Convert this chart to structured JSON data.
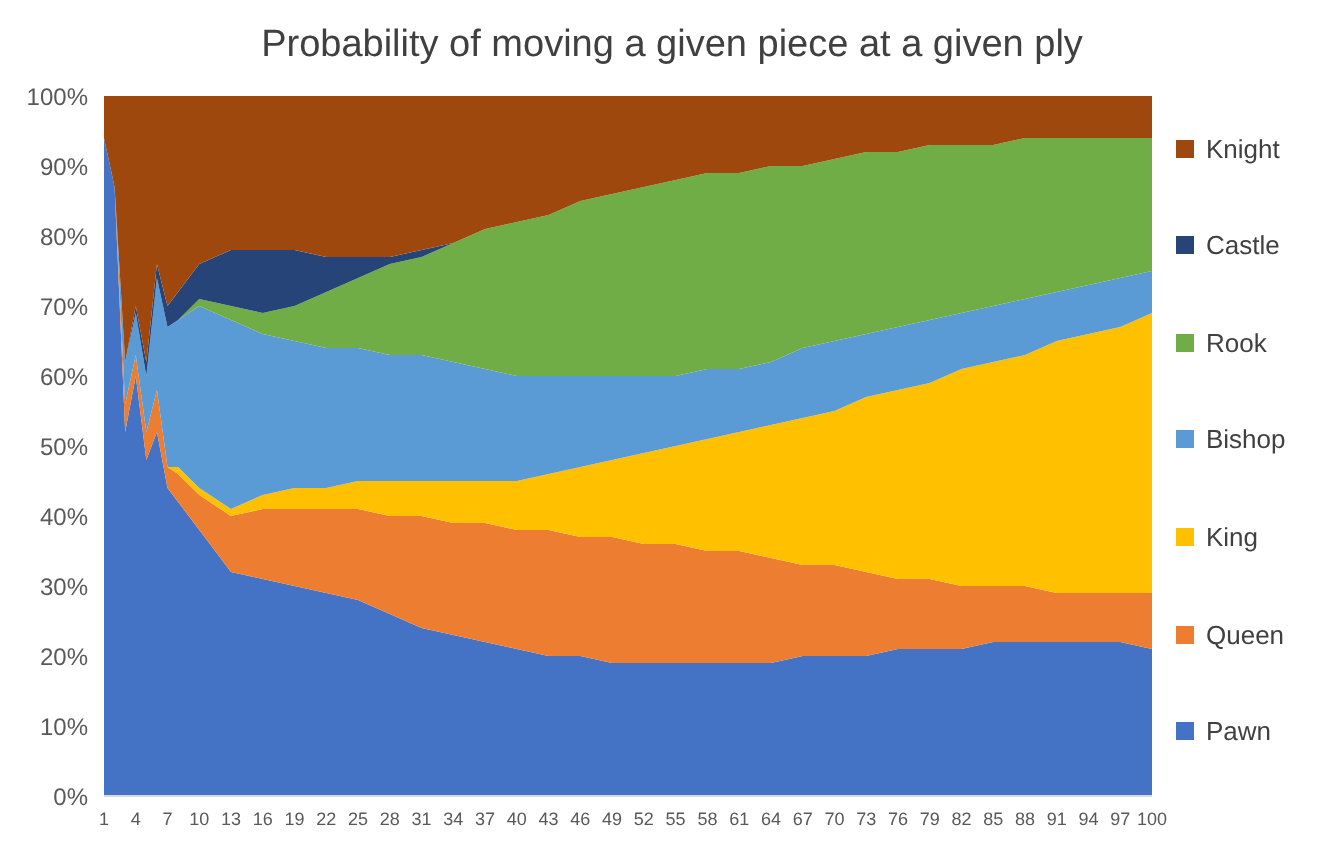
{
  "chart_data": {
    "type": "area",
    "title": "Probability of moving a given piece at a given ply",
    "stacked": true,
    "legend": "right",
    "grid": false,
    "x": [
      1,
      2,
      3,
      4,
      5,
      6,
      7,
      8,
      10,
      13,
      16,
      19,
      22,
      25,
      28,
      31,
      34,
      37,
      40,
      43,
      46,
      49,
      52,
      55,
      58,
      61,
      64,
      67,
      70,
      73,
      76,
      79,
      82,
      85,
      88,
      91,
      94,
      97,
      100
    ],
    "xlim": [
      1,
      100
    ],
    "xticks": [
      1,
      4,
      7,
      10,
      13,
      16,
      19,
      22,
      25,
      28,
      31,
      34,
      37,
      40,
      43,
      46,
      49,
      52,
      55,
      58,
      61,
      64,
      67,
      70,
      73,
      76,
      79,
      82,
      85,
      88,
      91,
      94,
      97,
      100
    ],
    "ylim": [
      0,
      100
    ],
    "yticks": [
      {
        "value": 0,
        "label": "0%"
      },
      {
        "value": 10,
        "label": "10%"
      },
      {
        "value": 20,
        "label": "20%"
      },
      {
        "value": 30,
        "label": "30%"
      },
      {
        "value": 40,
        "label": "40%"
      },
      {
        "value": 50,
        "label": "50%"
      },
      {
        "value": 60,
        "label": "60%"
      },
      {
        "value": 70,
        "label": "70%"
      },
      {
        "value": 80,
        "label": "80%"
      },
      {
        "value": 90,
        "label": "90%"
      },
      {
        "value": 100,
        "label": "100%"
      }
    ],
    "series": [
      {
        "name": "Pawn",
        "color": "#4472c4",
        "values": [
          94,
          87,
          52,
          60,
          48,
          52,
          44,
          42,
          38,
          32,
          31,
          30,
          29,
          28,
          26,
          24,
          23,
          22,
          21,
          20,
          20,
          19,
          19,
          19,
          19,
          19,
          19,
          20,
          20,
          20,
          21,
          21,
          21,
          22,
          22,
          22,
          22,
          22,
          21
        ]
      },
      {
        "name": "Queen",
        "color": "#ed7d31",
        "values": [
          0,
          0,
          4,
          3,
          4,
          6,
          3,
          4,
          5,
          8,
          10,
          11,
          12,
          13,
          14,
          16,
          16,
          17,
          17,
          18,
          17,
          18,
          17,
          17,
          16,
          16,
          15,
          13,
          13,
          12,
          10,
          10,
          9,
          8,
          8,
          7,
          7,
          7,
          8
        ]
      },
      {
        "name": "King",
        "color": "#ffc000",
        "values": [
          0,
          0,
          0,
          0,
          0,
          0,
          0,
          1,
          1,
          1,
          2,
          3,
          3,
          4,
          5,
          5,
          6,
          6,
          7,
          8,
          10,
          11,
          13,
          14,
          16,
          17,
          19,
          21,
          22,
          25,
          27,
          28,
          31,
          32,
          33,
          36,
          37,
          38,
          40
        ]
      },
      {
        "name": "Bishop",
        "color": "#5b9bd5",
        "values": [
          0,
          0,
          6,
          6,
          8,
          16,
          20,
          21,
          26,
          27,
          23,
          21,
          20,
          19,
          18,
          18,
          17,
          16,
          15,
          14,
          13,
          12,
          11,
          10,
          10,
          9,
          9,
          10,
          10,
          9,
          9,
          9,
          8,
          8,
          8,
          7,
          7,
          7,
          6
        ]
      },
      {
        "name": "Rook",
        "color": "#70ad47",
        "values": [
          0,
          0,
          0,
          0,
          0,
          0,
          0,
          0,
          1,
          2,
          3,
          5,
          8,
          10,
          13,
          14,
          17,
          20,
          22,
          23,
          25,
          26,
          27,
          28,
          28,
          28,
          28,
          26,
          26,
          26,
          25,
          25,
          24,
          23,
          23,
          22,
          21,
          20,
          19
        ]
      },
      {
        "name": "Castle",
        "color": "#264478",
        "values": [
          null,
          null,
          0,
          1,
          2,
          2,
          3,
          4,
          5,
          8,
          9,
          8,
          5,
          3,
          1,
          1,
          0,
          null,
          null,
          null,
          null,
          null,
          null,
          null,
          null,
          null,
          null,
          null,
          null,
          null,
          null,
          null,
          null,
          null,
          null,
          null,
          null,
          null,
          null
        ]
      },
      {
        "name": "Knight",
        "color": "#9e480e",
        "values": [
          6,
          13,
          38,
          30,
          38,
          24,
          30,
          28,
          24,
          22,
          22,
          22,
          23,
          23,
          23,
          22,
          21,
          19,
          18,
          17,
          15,
          14,
          13,
          12,
          11,
          11,
          10,
          10,
          9,
          8,
          8,
          7,
          7,
          7,
          6,
          6,
          6,
          6,
          6
        ]
      }
    ]
  }
}
